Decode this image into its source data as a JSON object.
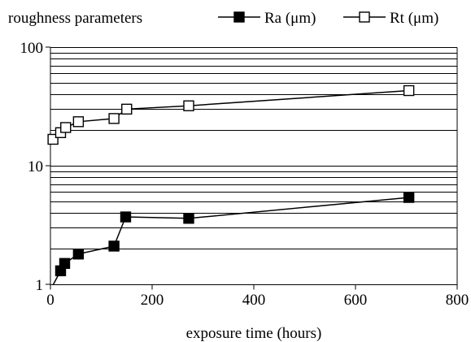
{
  "chart_data": {
    "type": "line",
    "title": "",
    "xlabel": "exposure time (hours)",
    "ylabel": "",
    "legend_title": "roughness parameters",
    "legend_position": "top",
    "y_scale": "log",
    "xlim": [
      0,
      800
    ],
    "ylim": [
      1,
      100
    ],
    "x_ticks": [
      "0",
      "200",
      "400",
      "600",
      "800"
    ],
    "y_ticks": [
      "1",
      "10",
      "100"
    ],
    "grid": "horizontal major and minor lines on log scale",
    "series": [
      {
        "name": "Ra (μm)",
        "marker": "filled-square",
        "color": "#000000",
        "x": [
          0,
          20,
          28,
          55,
          125,
          148,
          272,
          705
        ],
        "y": [
          0.9,
          1.3,
          1.5,
          1.8,
          2.1,
          3.7,
          3.6,
          5.4
        ]
      },
      {
        "name": "Rt (μm)",
        "marker": "open-square",
        "color": "#000000",
        "x": [
          5,
          20,
          30,
          55,
          125,
          150,
          272,
          705
        ],
        "y": [
          16.7,
          19.0,
          21.0,
          23.5,
          25.0,
          30.0,
          32.0,
          43.0
        ]
      }
    ]
  }
}
